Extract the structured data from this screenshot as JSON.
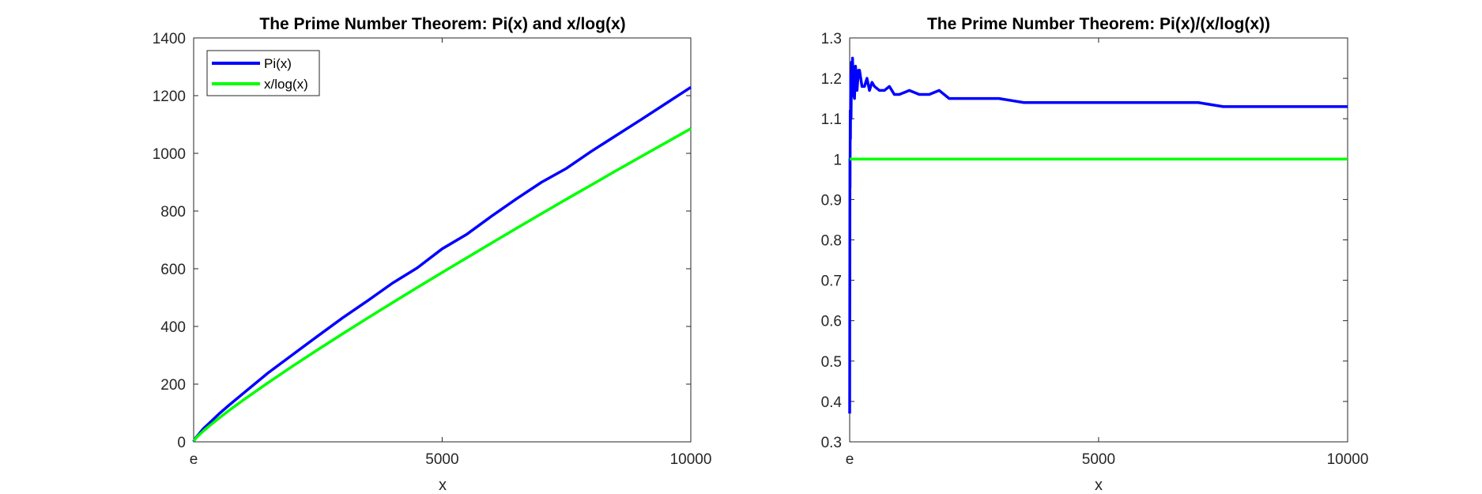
{
  "chart_data": [
    {
      "type": "line",
      "title": "The Prime Number Theorem: Pi(x) and x/log(x)",
      "xlabel": "x",
      "ylabel": "",
      "xlim": [
        2.718,
        10000
      ],
      "ylim": [
        0,
        1400
      ],
      "xticks": [
        {
          "value": 2.718,
          "label": "e"
        },
        {
          "value": 5000,
          "label": "5000"
        },
        {
          "value": 10000,
          "label": "10000"
        }
      ],
      "yticks": [
        {
          "value": 0,
          "label": "0"
        },
        {
          "value": 200,
          "label": "200"
        },
        {
          "value": 400,
          "label": "400"
        },
        {
          "value": 600,
          "label": "600"
        },
        {
          "value": 800,
          "label": "800"
        },
        {
          "value": 1000,
          "label": "1000"
        },
        {
          "value": 1200,
          "label": "1200"
        },
        {
          "value": 1400,
          "label": "1400"
        }
      ],
      "grid": false,
      "legend": "top-left",
      "series": [
        {
          "name": "Pi(x)",
          "color": "#0000ff",
          "x": [
            2.718,
            10,
            50,
            100,
            200,
            300,
            500,
            700,
            1000,
            1500,
            2000,
            2500,
            3000,
            3500,
            4000,
            4500,
            5000,
            5500,
            6000,
            6500,
            7000,
            7500,
            8000,
            8500,
            9000,
            9500,
            10000
          ],
          "y": [
            1,
            4,
            15,
            25,
            46,
            62,
            95,
            125,
            168,
            239,
            303,
            367,
            430,
            489,
            550,
            603,
            669,
            720,
            783,
            843,
            900,
            948,
            1007,
            1062,
            1117,
            1173,
            1229
          ]
        },
        {
          "name": "x/log(x)",
          "color": "#00ff00",
          "x": [
            2.718,
            10,
            50,
            100,
            200,
            300,
            500,
            700,
            1000,
            1500,
            2000,
            2500,
            3000,
            3500,
            4000,
            4500,
            5000,
            5500,
            6000,
            6500,
            7000,
            7500,
            8000,
            8500,
            9000,
            9500,
            10000
          ],
          "y": [
            2.72,
            4.3,
            12.8,
            21.7,
            37.7,
            52.6,
            80.5,
            106.8,
            144.8,
            205.1,
            263.1,
            319.5,
            374.7,
            428.9,
            482.3,
            534.8,
            587.0,
            638.3,
            689.8,
            740.7,
            791.0,
            841.3,
            890.4,
            940.0,
            988.6,
            1037.1,
            1085.7
          ]
        }
      ]
    },
    {
      "type": "line",
      "title": "The Prime Number Theorem: Pi(x)/(x/log(x))",
      "xlabel": "x",
      "ylabel": "",
      "xlim": [
        2.718,
        10000
      ],
      "ylim": [
        0.3,
        1.3
      ],
      "xticks": [
        {
          "value": 2.718,
          "label": "e"
        },
        {
          "value": 5000,
          "label": "5000"
        },
        {
          "value": 10000,
          "label": "10000"
        }
      ],
      "yticks": [
        {
          "value": 0.3,
          "label": "0.3"
        },
        {
          "value": 0.4,
          "label": "0.4"
        },
        {
          "value": 0.5,
          "label": "0.5"
        },
        {
          "value": 0.6,
          "label": "0.6"
        },
        {
          "value": 0.7,
          "label": "0.7"
        },
        {
          "value": 0.8,
          "label": "0.8"
        },
        {
          "value": 0.9,
          "label": "0.9"
        },
        {
          "value": 1,
          "label": "1"
        },
        {
          "value": 1.1,
          "label": "1.1"
        },
        {
          "value": 1.2,
          "label": "1.2"
        },
        {
          "value": 1.3,
          "label": "1.3"
        }
      ],
      "grid": false,
      "legend": "none",
      "series": [
        {
          "color": "#0000ff",
          "x": [
            2.718,
            4,
            6,
            8,
            10,
            14,
            18,
            24,
            30,
            40,
            50,
            60,
            80,
            100,
            120,
            150,
            180,
            200,
            250,
            300,
            350,
            400,
            450,
            500,
            600,
            700,
            800,
            900,
            1000,
            1200,
            1400,
            1600,
            1800,
            2000,
            2500,
            3000,
            3500,
            4000,
            4500,
            5000,
            5500,
            6000,
            6500,
            7000,
            7500,
            8000,
            8500,
            9000,
            9500,
            10000
          ],
          "y": [
            0.37,
            0.55,
            0.75,
            1.0,
            0.93,
            1.12,
            1.05,
            1.21,
            1.1,
            1.24,
            1.17,
            1.25,
            1.16,
            1.15,
            1.23,
            1.17,
            1.22,
            1.22,
            1.18,
            1.18,
            1.2,
            1.17,
            1.19,
            1.18,
            1.17,
            1.17,
            1.18,
            1.16,
            1.16,
            1.17,
            1.16,
            1.16,
            1.17,
            1.15,
            1.15,
            1.15,
            1.14,
            1.14,
            1.14,
            1.14,
            1.14,
            1.14,
            1.14,
            1.14,
            1.13,
            1.13,
            1.13,
            1.13,
            1.13,
            1.13
          ]
        },
        {
          "color": "#00ff00",
          "x": [
            2.718,
            10000
          ],
          "y": [
            1,
            1
          ]
        }
      ]
    }
  ]
}
